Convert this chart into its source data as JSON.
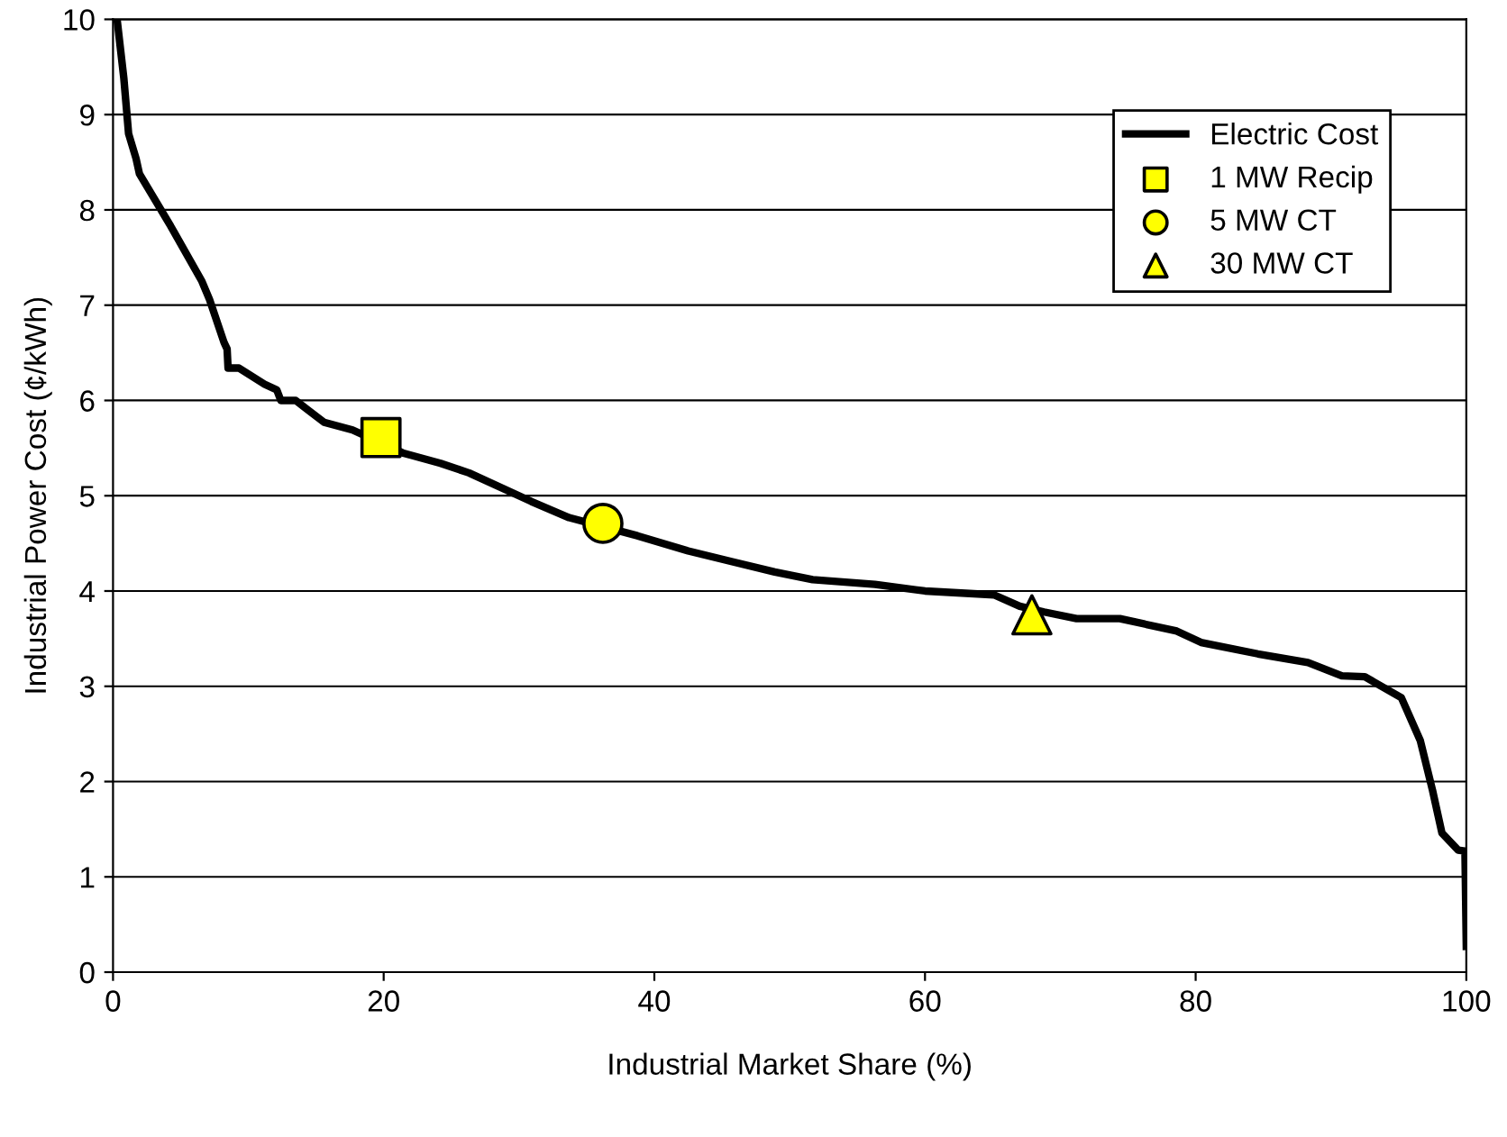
{
  "chart_data": {
    "type": "line",
    "xlabel": "Industrial Market Share (%)",
    "ylabel": "Industrial Power Cost (¢/kWh)",
    "xlim": [
      0,
      100
    ],
    "xticks": [
      0,
      20,
      40,
      60,
      80,
      100
    ],
    "ylim": [
      0,
      10
    ],
    "yticks": [
      0,
      1,
      2,
      3,
      4,
      5,
      6,
      7,
      8,
      9,
      10
    ],
    "grid": "y",
    "legend": "top right",
    "series": [
      {
        "name": "Electric Cost",
        "color": "#000000",
        "marker": "none",
        "line_style": "solid",
        "x": [
          0.3,
          0.8,
          1.15,
          1.7,
          1.95,
          4.26,
          6.57,
          7.13,
          8.2,
          8.43,
          8.5,
          9.3,
          11.2,
          12.1,
          12.4,
          13.5,
          14.4,
          15.6,
          17.7,
          21.4,
          24.2,
          26.3,
          30.9,
          33.7,
          38.75,
          42.5,
          45.7,
          48.9,
          51.7,
          56.3,
          60.0,
          65.1,
          67.0,
          68.8,
          71.2,
          74.4,
          78.6,
          80.4,
          84.6,
          88.3,
          90.8,
          92.5,
          95.2,
          96.6,
          97.5,
          98.2,
          99.4,
          99.9,
          100
        ],
        "values": [
          10,
          9.38,
          8.8,
          8.54,
          8.38,
          7.83,
          7.25,
          7.06,
          6.61,
          6.54,
          6.34,
          6.34,
          6.17,
          6.11,
          6.0,
          6.0,
          5.9,
          5.77,
          5.69,
          5.45,
          5.34,
          5.24,
          4.94,
          4.77,
          4.58,
          4.42,
          4.31,
          4.2,
          4.12,
          4.07,
          4.0,
          3.96,
          3.84,
          3.78,
          3.71,
          3.71,
          3.58,
          3.46,
          3.34,
          3.25,
          3.11,
          3.1,
          2.88,
          2.43,
          1.91,
          1.46,
          1.28,
          1.27,
          0.27
        ]
      },
      {
        "name": "1 MW Recip",
        "type": "scatter",
        "color": "#ffff00",
        "marker": "square",
        "x": [
          19.8
        ],
        "values": [
          5.61
        ]
      },
      {
        "name": "5 MW CT",
        "type": "scatter",
        "color": "#ffff00",
        "marker": "circle",
        "x": [
          36.2
        ],
        "values": [
          4.71
        ]
      },
      {
        "name": "30 MW CT",
        "type": "scatter",
        "color": "#ffff00",
        "marker": "triangle",
        "x": [
          67.9
        ],
        "values": [
          3.75
        ]
      }
    ]
  }
}
